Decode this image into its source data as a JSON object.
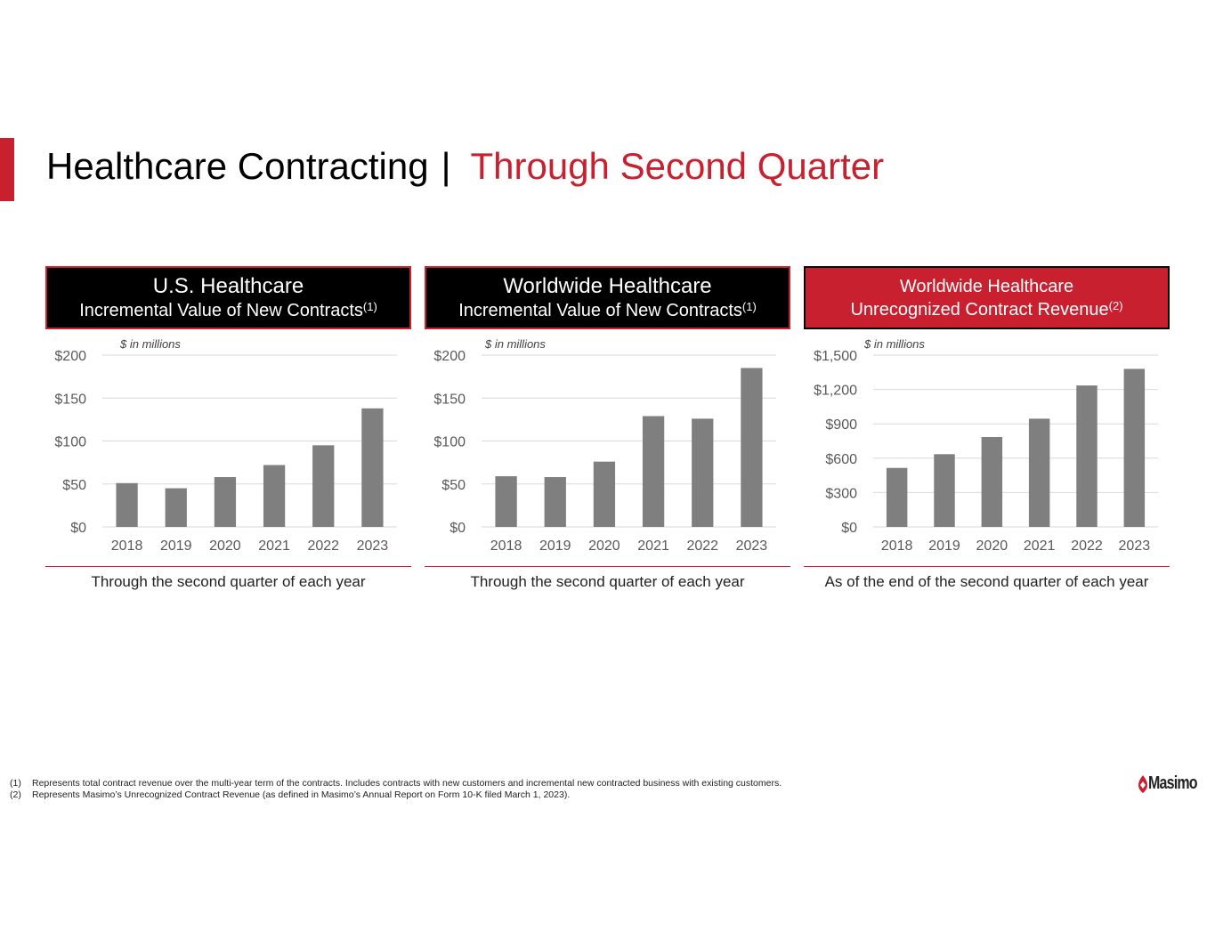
{
  "title": {
    "main": "Healthcare Contracting",
    "separator": "|",
    "sub": "Through Second Quarter"
  },
  "panels": [
    {
      "header_line1": "U.S. Healthcare",
      "header_line2": "Incremental Value of New Contracts",
      "header_note": "(1)",
      "units": "$ in millions",
      "caption": "Through the second quarter of each year"
    },
    {
      "header_line1": "Worldwide Healthcare",
      "header_line2": "Incremental Value of New Contracts",
      "header_note": "(1)",
      "units": "$ in millions",
      "caption": "Through the second quarter of each year"
    },
    {
      "header_line1": "Worldwide Healthcare",
      "header_line2": "Unrecognized Contract Revenue",
      "header_note": "(2)",
      "units": "$ in millions",
      "caption": "As of the end of the second quarter of each year"
    }
  ],
  "chart_data": [
    {
      "type": "bar",
      "title": "U.S. Healthcare Incremental Value of New Contracts",
      "categories": [
        "2018",
        "2019",
        "2020",
        "2021",
        "2022",
        "2023"
      ],
      "values": [
        51,
        45,
        58,
        72,
        95,
        138
      ],
      "ylim": [
        0,
        200
      ],
      "yticks": [
        0,
        50,
        100,
        150,
        200
      ],
      "ytick_labels": [
        "$0",
        "$50",
        "$100",
        "$150",
        "$200"
      ],
      "ylabel": "$ in millions",
      "bar_color": "#7f7f7f"
    },
    {
      "type": "bar",
      "title": "Worldwide Healthcare Incremental Value of New Contracts",
      "categories": [
        "2018",
        "2019",
        "2020",
        "2021",
        "2022",
        "2023"
      ],
      "values": [
        59,
        58,
        76,
        129,
        126,
        185
      ],
      "ylim": [
        0,
        200
      ],
      "yticks": [
        0,
        50,
        100,
        150,
        200
      ],
      "ytick_labels": [
        "$0",
        "$50",
        "$100",
        "$150",
        "$200"
      ],
      "ylabel": "$ in millions",
      "bar_color": "#7f7f7f"
    },
    {
      "type": "bar",
      "title": "Worldwide Healthcare Unrecognized Contract Revenue",
      "categories": [
        "2018",
        "2019",
        "2020",
        "2021",
        "2022",
        "2023"
      ],
      "values": [
        515,
        635,
        785,
        945,
        1235,
        1380
      ],
      "ylim": [
        0,
        1500
      ],
      "yticks": [
        0,
        300,
        600,
        900,
        1200,
        1500
      ],
      "ytick_labels": [
        "$0",
        "$300",
        "$600",
        "$900",
        "$1,200",
        "$1,500"
      ],
      "ylabel": "$ in millions",
      "bar_color": "#7f7f7f"
    }
  ],
  "footnotes": [
    {
      "num": "(1)",
      "text": "Represents total contract revenue over the multi-year term of the contracts.  Includes contracts with new customers and incremental new contracted business with existing customers."
    },
    {
      "num": "(2)",
      "text": "Represents Masimo’s Unrecognized Contract Revenue (as defined in Masimo’s Annual Report on Form 10-K filed March 1, 2023)."
    }
  ],
  "logo": {
    "text": "Masimo",
    "icon": "masimo-logo-icon"
  },
  "colors": {
    "accent": "#c8202f",
    "bar": "#7f7f7f",
    "grid": "#d9d9d9",
    "axis_text": "#595959"
  }
}
